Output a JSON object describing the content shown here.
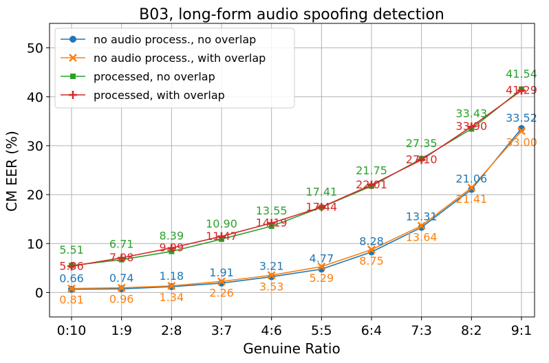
{
  "chart_data": {
    "type": "line",
    "title": "B03, long-form audio spoofing detection",
    "xlabel": "Genuine Ratio",
    "ylabel": "CM EER (%)",
    "categories": [
      "0:10",
      "1:9",
      "2:8",
      "3:7",
      "4:6",
      "5:5",
      "6:4",
      "7:3",
      "8:2",
      "9:1"
    ],
    "ylim": [
      -5,
      55
    ],
    "yticks": [
      0,
      10,
      20,
      30,
      40,
      50
    ],
    "grid": true,
    "legend_position": "top-left",
    "series": [
      {
        "name": "no audio process., no overlap",
        "color": "#1f77b4",
        "marker": "circle",
        "values": [
          0.66,
          0.74,
          1.18,
          1.91,
          3.21,
          4.77,
          8.28,
          13.31,
          21.06,
          33.52
        ],
        "labels": [
          "0.66",
          "0.74",
          "1.18",
          "1.91",
          "3.21",
          "4.77",
          "8.28",
          "13.31",
          "21.06",
          "33.52"
        ]
      },
      {
        "name": "no audio process., with overlap",
        "color": "#ff7f0e",
        "marker": "x",
        "values": [
          0.81,
          0.96,
          1.34,
          2.26,
          3.53,
          5.29,
          8.75,
          13.64,
          21.41,
          33.0
        ],
        "labels": [
          "0.81",
          "0.96",
          "1.34",
          "2.26",
          "3.53",
          "5.29",
          "8.75",
          "13.64",
          "21.41",
          "33.00"
        ]
      },
      {
        "name": "processed, no overlap",
        "color": "#2ca02c",
        "marker": "square",
        "values": [
          5.51,
          6.71,
          8.39,
          10.9,
          13.55,
          17.41,
          21.75,
          27.35,
          33.43,
          41.54
        ],
        "labels": [
          "5.51",
          "6.71",
          "8.39",
          "10.90",
          "13.55",
          "17.41",
          "21.75",
          "27.35",
          "33.43",
          "41.54"
        ]
      },
      {
        "name": "processed, with overlap",
        "color": "#d62728",
        "marker": "plus",
        "values": [
          5.36,
          7.08,
          9.09,
          11.47,
          14.19,
          17.44,
          22.01,
          27.1,
          33.9,
          41.29
        ],
        "labels": [
          "5.36",
          "7.08",
          "9.09",
          "11.47",
          "14.19",
          "17.44",
          "22.01",
          "27.10",
          "33.90",
          "41.29"
        ]
      }
    ]
  }
}
